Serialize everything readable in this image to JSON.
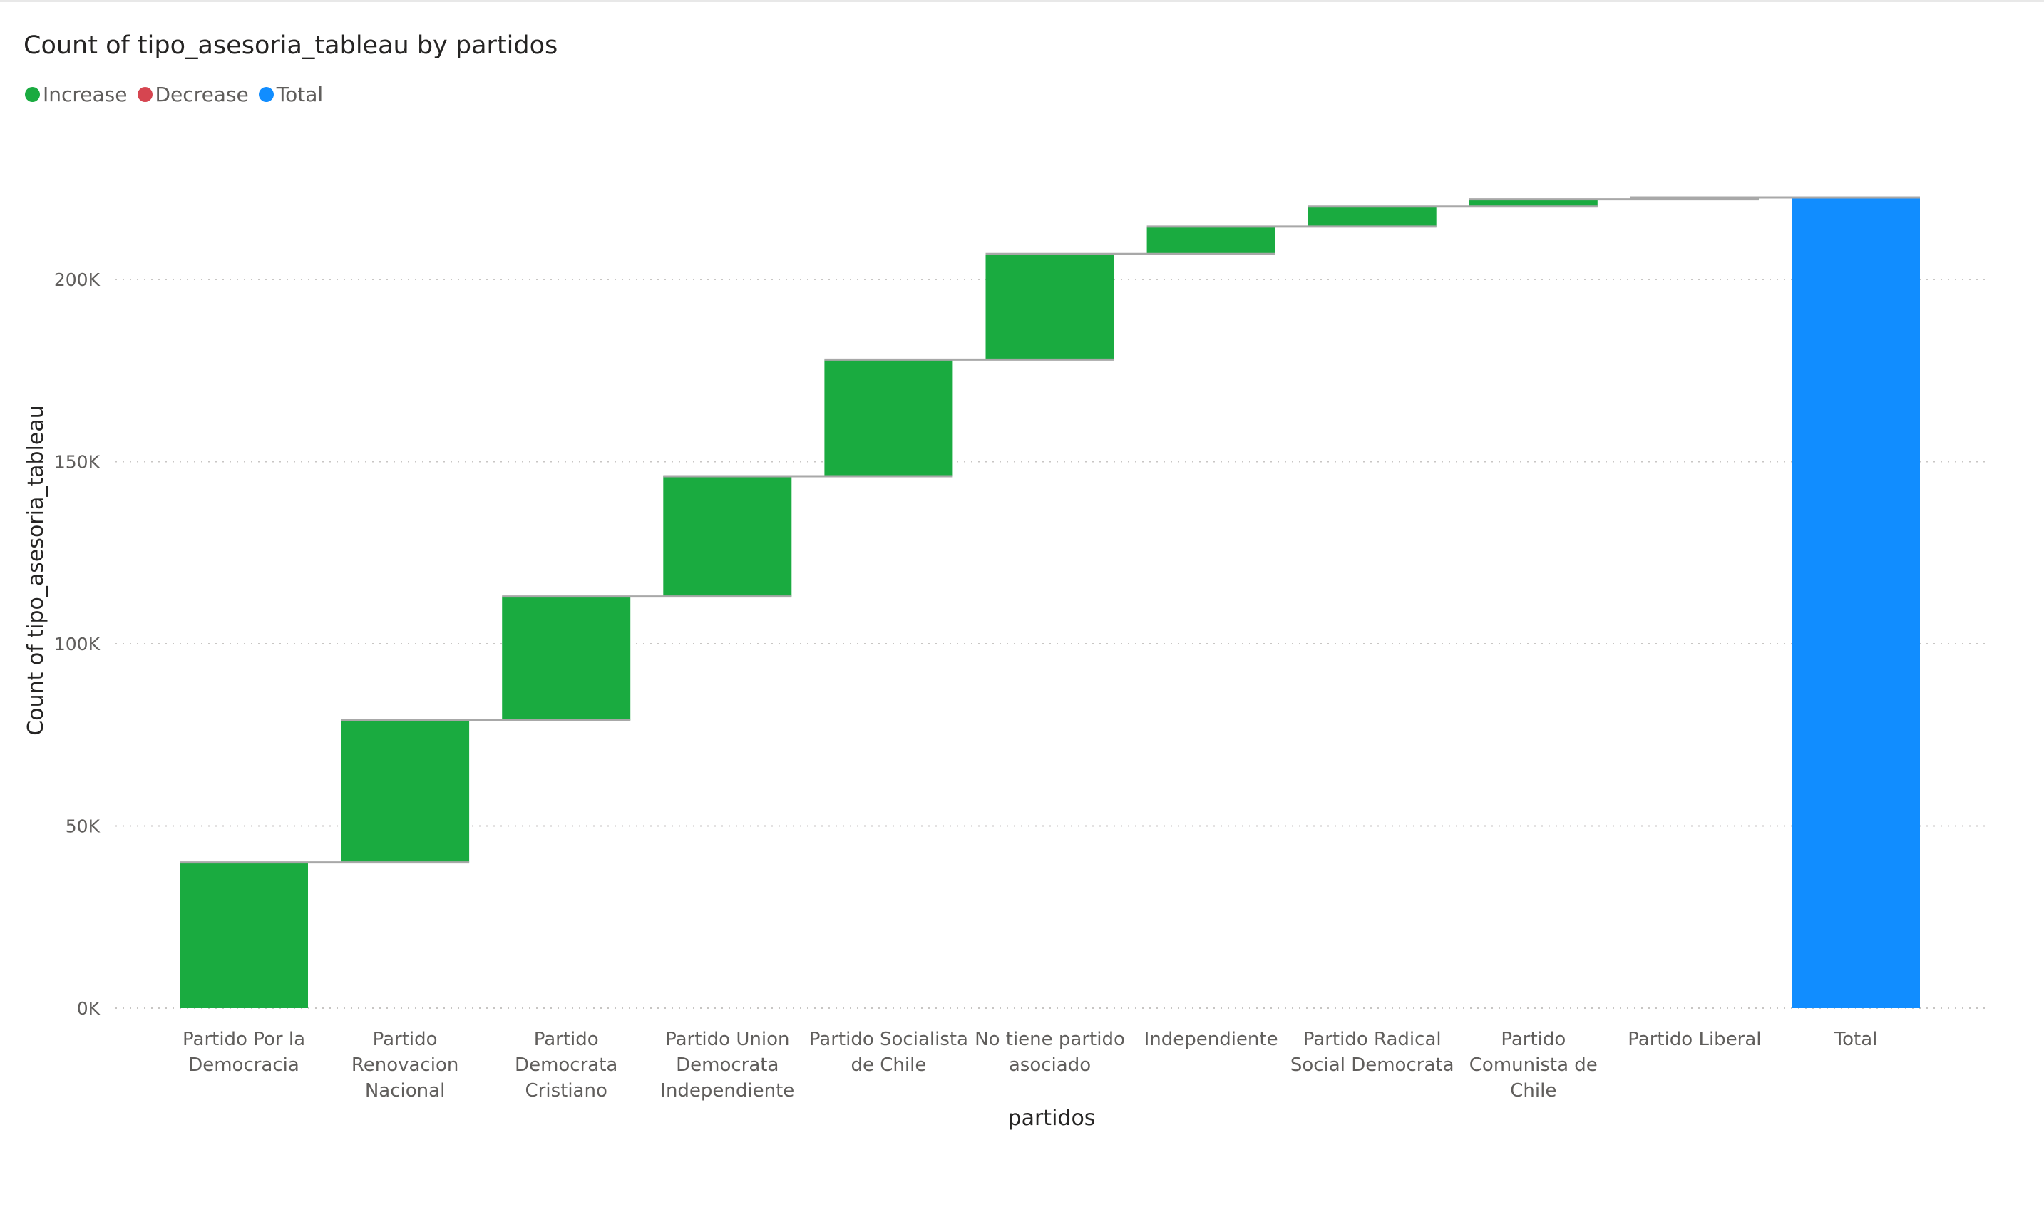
{
  "chart_data": {
    "type": "waterfall",
    "title": "Count of tipo_asesoria_tableau by partidos",
    "xlabel": "partidos",
    "ylabel": "Count of tipo_asesoria_tableau",
    "ylim": [
      0,
      230000
    ],
    "yticks": [
      {
        "value": 0,
        "label": "0K"
      },
      {
        "value": 50000,
        "label": "50K"
      },
      {
        "value": 100000,
        "label": "100K"
      },
      {
        "value": 150000,
        "label": "150K"
      },
      {
        "value": 200000,
        "label": "200K"
      }
    ],
    "grid": "horizontal-dotted",
    "legend_position": "top-left",
    "legend": [
      {
        "label": "Increase",
        "color": "#1aab40"
      },
      {
        "label": "Decrease",
        "color": "#d64550"
      },
      {
        "label": "Total",
        "color": "#118dff"
      }
    ],
    "categories": [
      "Partido Por la Democracia",
      "Partido Renovacion Nacional",
      "Partido Democrata Cristiano",
      "Partido Union Democrata Independiente",
      "Partido Socialista de Chile",
      "No tiene partido asociado",
      "Independiente",
      "Partido Radical Social Democrata",
      "Partido Comunista de Chile",
      "Partido Liberal"
    ],
    "category_label_lines": [
      [
        "Partido Por la",
        "Democracia"
      ],
      [
        "Partido",
        "Renovacion",
        "Nacional"
      ],
      [
        "Partido",
        "Democrata",
        "Cristiano"
      ],
      [
        "Partido Union",
        "Democrata",
        "Independiente"
      ],
      [
        "Partido Socialista",
        "de Chile"
      ],
      [
        "No tiene partido",
        "asociado"
      ],
      [
        "Independiente"
      ],
      [
        "Partido Radical",
        "Social Democrata"
      ],
      [
        "Partido",
        "Comunista de",
        "Chile"
      ],
      [
        "Partido Liberal"
      ],
      [
        "Total"
      ]
    ],
    "values": [
      40000,
      39000,
      34000,
      33000,
      32000,
      29000,
      7500,
      5500,
      2000,
      500
    ],
    "total": {
      "label": "Total",
      "value": 222500
    }
  }
}
